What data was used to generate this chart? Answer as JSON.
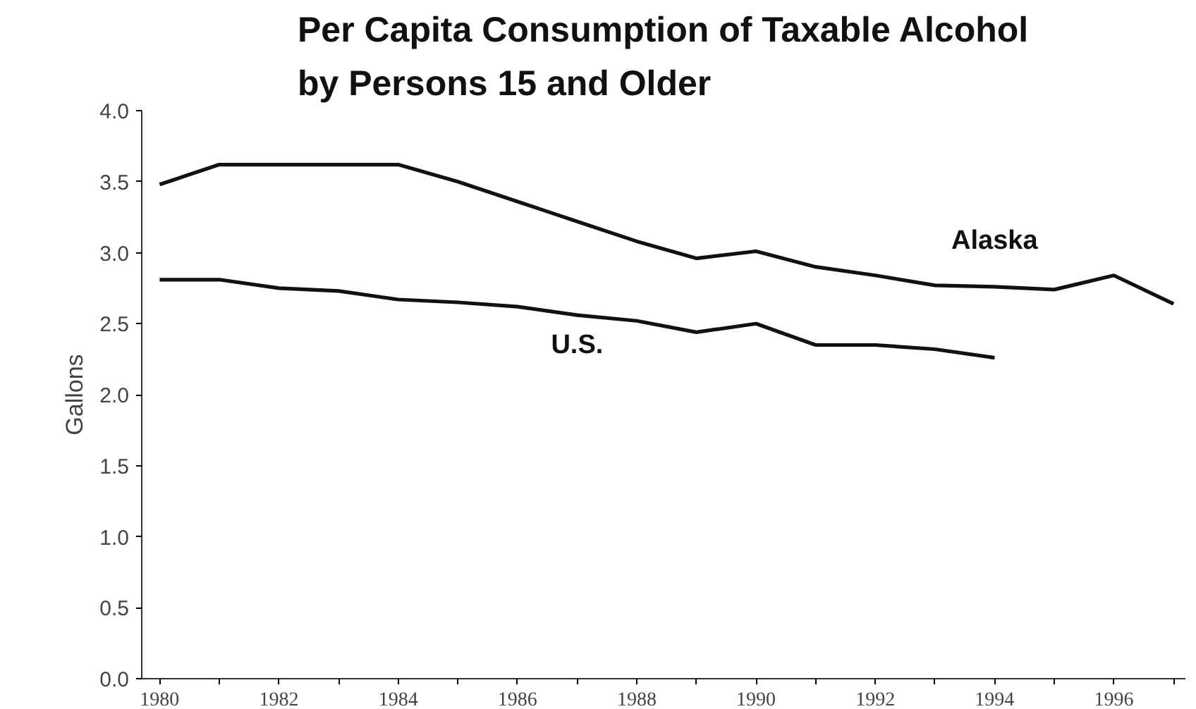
{
  "chart_data": {
    "type": "line",
    "title": "Per Capita Consumption of Taxable Alcohol\nby Persons 15 and Older",
    "ylabel": "Gallons",
    "x": [
      1980,
      1981,
      1982,
      1983,
      1984,
      1985,
      1986,
      1987,
      1988,
      1989,
      1990,
      1991,
      1992,
      1993,
      1994,
      1995,
      1996,
      1997
    ],
    "series": [
      {
        "name": "Alaska",
        "color": "#111111",
        "values": [
          3.48,
          3.62,
          3.62,
          3.62,
          3.62,
          3.5,
          3.36,
          3.22,
          3.08,
          2.96,
          3.01,
          2.9,
          2.84,
          2.77,
          2.76,
          2.74,
          2.84,
          2.64
        ]
      },
      {
        "name": "U.S.",
        "color": "#111111",
        "values": [
          2.81,
          2.81,
          2.75,
          2.73,
          2.67,
          2.65,
          2.62,
          2.56,
          2.52,
          2.44,
          2.5,
          2.35,
          2.35,
          2.32,
          2.26,
          null,
          null,
          null
        ]
      }
    ],
    "xlim": [
      1979.7,
      1997.2
    ],
    "ylim": [
      0,
      4
    ],
    "xticks": [
      1980,
      {
        "value": 1981,
        "label": null
      },
      1982,
      {
        "value": 1983,
        "label": null
      },
      1984,
      {
        "value": 1985,
        "label": null
      },
      1986,
      {
        "value": 1987,
        "label": null
      },
      1988,
      {
        "value": 1989,
        "label": null
      },
      1990,
      {
        "value": 1991,
        "label": null
      },
      1992,
      {
        "value": 1993,
        "label": null
      },
      1994,
      {
        "value": 1995,
        "label": null
      },
      1996,
      {
        "value": 1997,
        "label": null
      }
    ],
    "yticks": [
      {
        "value": 0,
        "label": "0.0"
      },
      {
        "value": 0.5,
        "label": "0.5"
      },
      {
        "value": 1,
        "label": "1.0"
      },
      {
        "value": 1.5,
        "label": "1.5"
      },
      {
        "value": 2,
        "label": "2.0"
      },
      {
        "value": 2.5,
        "label": "2.5"
      },
      {
        "value": 3,
        "label": "3.0"
      },
      {
        "value": 3.5,
        "label": "3.5"
      },
      {
        "value": 4,
        "label": "4.0"
      }
    ],
    "grid": false,
    "marker": "none",
    "line_style": "solid"
  }
}
